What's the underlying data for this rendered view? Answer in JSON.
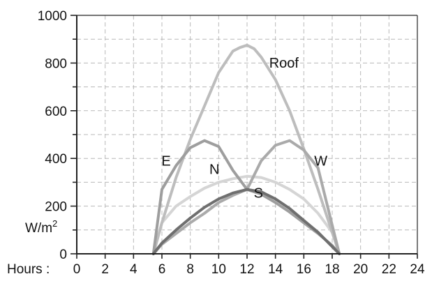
{
  "chart_data": {
    "type": "line",
    "title": "",
    "xlabel": "Hours :",
    "ylabel": "W/m",
    "ylabel_sup": "2",
    "xlim": [
      0,
      24
    ],
    "ylim": [
      0,
      1000
    ],
    "xticks": [
      0,
      2,
      4,
      6,
      8,
      10,
      12,
      14,
      16,
      18,
      20,
      22,
      24
    ],
    "yticks": [
      0,
      200,
      400,
      600,
      800,
      1000
    ],
    "grid": true,
    "series": [
      {
        "name": "Roof",
        "color": "#bdbdbd",
        "x": [
          5.4,
          6,
          7,
          8,
          9,
          10,
          11,
          11.5,
          12,
          12.5,
          13,
          14,
          15,
          16,
          17,
          18,
          18.5
        ],
        "y": [
          0,
          130,
          320,
          480,
          620,
          760,
          850,
          865,
          875,
          860,
          825,
          730,
          600,
          440,
          270,
          90,
          0
        ]
      },
      {
        "name": "E",
        "color": "#9e9e9e",
        "x": [
          5.4,
          6,
          7,
          8,
          9,
          10,
          11,
          12,
          13,
          14,
          15,
          16,
          17,
          18,
          18.5
        ],
        "y": [
          0,
          270,
          370,
          445,
          475,
          450,
          350,
          270,
          250,
          215,
          175,
          130,
          85,
          35,
          0
        ]
      },
      {
        "name": "W",
        "color": "#aaaaaa",
        "x": [
          5.4,
          6,
          7,
          8,
          9,
          10,
          11,
          12,
          13,
          14,
          15,
          16,
          17,
          18,
          18.5
        ],
        "y": [
          0,
          40,
          85,
          130,
          170,
          215,
          245,
          270,
          390,
          455,
          475,
          435,
          360,
          120,
          0
        ]
      },
      {
        "name": "N",
        "color": "#d5d5d5",
        "x": [
          5.4,
          6,
          7,
          8,
          9,
          10,
          11,
          12,
          13,
          14,
          15,
          16,
          17,
          18,
          18.5
        ],
        "y": [
          0,
          130,
          200,
          240,
          275,
          300,
          315,
          325,
          320,
          300,
          270,
          230,
          170,
          90,
          0
        ]
      },
      {
        "name": "S",
        "color": "#6f6f6f",
        "x": [
          5.4,
          6,
          7,
          8,
          9,
          10,
          11,
          12,
          13,
          14,
          15,
          16,
          17,
          18,
          18.5
        ],
        "y": [
          0,
          45,
          100,
          150,
          195,
          230,
          255,
          270,
          260,
          230,
          190,
          140,
          90,
          30,
          0
        ]
      }
    ],
    "annotations": [
      {
        "text": "Roof",
        "x": 14.6,
        "y": 780
      },
      {
        "text": "E",
        "x": 6.3,
        "y": 370
      },
      {
        "text": "N",
        "x": 9.7,
        "y": 335
      },
      {
        "text": "S",
        "x": 12.8,
        "y": 235
      },
      {
        "text": "W",
        "x": 17.2,
        "y": 370
      }
    ]
  }
}
